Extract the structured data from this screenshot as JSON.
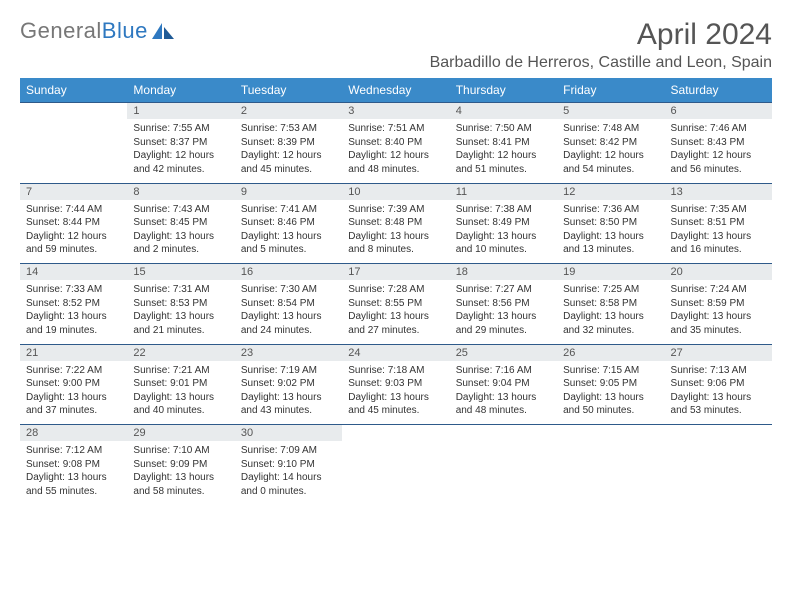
{
  "logo": {
    "part1": "General",
    "part2": "Blue"
  },
  "title": "April 2024",
  "location": "Barbadillo de Herreros, Castille and Leon, Spain",
  "colors": {
    "header_bg": "#3a8ac9",
    "daynum_bg": "#e8ebed",
    "border": "#2e5a8a",
    "logo_gray": "#777",
    "logo_blue": "#2e78c0"
  },
  "weekdays": [
    "Sunday",
    "Monday",
    "Tuesday",
    "Wednesday",
    "Thursday",
    "Friday",
    "Saturday"
  ],
  "weeks": [
    {
      "nums": [
        "",
        "1",
        "2",
        "3",
        "4",
        "5",
        "6"
      ],
      "cells": [
        null,
        {
          "sr": "Sunrise: 7:55 AM",
          "ss": "Sunset: 8:37 PM",
          "d1": "Daylight: 12 hours",
          "d2": "and 42 minutes."
        },
        {
          "sr": "Sunrise: 7:53 AM",
          "ss": "Sunset: 8:39 PM",
          "d1": "Daylight: 12 hours",
          "d2": "and 45 minutes."
        },
        {
          "sr": "Sunrise: 7:51 AM",
          "ss": "Sunset: 8:40 PM",
          "d1": "Daylight: 12 hours",
          "d2": "and 48 minutes."
        },
        {
          "sr": "Sunrise: 7:50 AM",
          "ss": "Sunset: 8:41 PM",
          "d1": "Daylight: 12 hours",
          "d2": "and 51 minutes."
        },
        {
          "sr": "Sunrise: 7:48 AM",
          "ss": "Sunset: 8:42 PM",
          "d1": "Daylight: 12 hours",
          "d2": "and 54 minutes."
        },
        {
          "sr": "Sunrise: 7:46 AM",
          "ss": "Sunset: 8:43 PM",
          "d1": "Daylight: 12 hours",
          "d2": "and 56 minutes."
        }
      ]
    },
    {
      "nums": [
        "7",
        "8",
        "9",
        "10",
        "11",
        "12",
        "13"
      ],
      "cells": [
        {
          "sr": "Sunrise: 7:44 AM",
          "ss": "Sunset: 8:44 PM",
          "d1": "Daylight: 12 hours",
          "d2": "and 59 minutes."
        },
        {
          "sr": "Sunrise: 7:43 AM",
          "ss": "Sunset: 8:45 PM",
          "d1": "Daylight: 13 hours",
          "d2": "and 2 minutes."
        },
        {
          "sr": "Sunrise: 7:41 AM",
          "ss": "Sunset: 8:46 PM",
          "d1": "Daylight: 13 hours",
          "d2": "and 5 minutes."
        },
        {
          "sr": "Sunrise: 7:39 AM",
          "ss": "Sunset: 8:48 PM",
          "d1": "Daylight: 13 hours",
          "d2": "and 8 minutes."
        },
        {
          "sr": "Sunrise: 7:38 AM",
          "ss": "Sunset: 8:49 PM",
          "d1": "Daylight: 13 hours",
          "d2": "and 10 minutes."
        },
        {
          "sr": "Sunrise: 7:36 AM",
          "ss": "Sunset: 8:50 PM",
          "d1": "Daylight: 13 hours",
          "d2": "and 13 minutes."
        },
        {
          "sr": "Sunrise: 7:35 AM",
          "ss": "Sunset: 8:51 PM",
          "d1": "Daylight: 13 hours",
          "d2": "and 16 minutes."
        }
      ]
    },
    {
      "nums": [
        "14",
        "15",
        "16",
        "17",
        "18",
        "19",
        "20"
      ],
      "cells": [
        {
          "sr": "Sunrise: 7:33 AM",
          "ss": "Sunset: 8:52 PM",
          "d1": "Daylight: 13 hours",
          "d2": "and 19 minutes."
        },
        {
          "sr": "Sunrise: 7:31 AM",
          "ss": "Sunset: 8:53 PM",
          "d1": "Daylight: 13 hours",
          "d2": "and 21 minutes."
        },
        {
          "sr": "Sunrise: 7:30 AM",
          "ss": "Sunset: 8:54 PM",
          "d1": "Daylight: 13 hours",
          "d2": "and 24 minutes."
        },
        {
          "sr": "Sunrise: 7:28 AM",
          "ss": "Sunset: 8:55 PM",
          "d1": "Daylight: 13 hours",
          "d2": "and 27 minutes."
        },
        {
          "sr": "Sunrise: 7:27 AM",
          "ss": "Sunset: 8:56 PM",
          "d1": "Daylight: 13 hours",
          "d2": "and 29 minutes."
        },
        {
          "sr": "Sunrise: 7:25 AM",
          "ss": "Sunset: 8:58 PM",
          "d1": "Daylight: 13 hours",
          "d2": "and 32 minutes."
        },
        {
          "sr": "Sunrise: 7:24 AM",
          "ss": "Sunset: 8:59 PM",
          "d1": "Daylight: 13 hours",
          "d2": "and 35 minutes."
        }
      ]
    },
    {
      "nums": [
        "21",
        "22",
        "23",
        "24",
        "25",
        "26",
        "27"
      ],
      "cells": [
        {
          "sr": "Sunrise: 7:22 AM",
          "ss": "Sunset: 9:00 PM",
          "d1": "Daylight: 13 hours",
          "d2": "and 37 minutes."
        },
        {
          "sr": "Sunrise: 7:21 AM",
          "ss": "Sunset: 9:01 PM",
          "d1": "Daylight: 13 hours",
          "d2": "and 40 minutes."
        },
        {
          "sr": "Sunrise: 7:19 AM",
          "ss": "Sunset: 9:02 PM",
          "d1": "Daylight: 13 hours",
          "d2": "and 43 minutes."
        },
        {
          "sr": "Sunrise: 7:18 AM",
          "ss": "Sunset: 9:03 PM",
          "d1": "Daylight: 13 hours",
          "d2": "and 45 minutes."
        },
        {
          "sr": "Sunrise: 7:16 AM",
          "ss": "Sunset: 9:04 PM",
          "d1": "Daylight: 13 hours",
          "d2": "and 48 minutes."
        },
        {
          "sr": "Sunrise: 7:15 AM",
          "ss": "Sunset: 9:05 PM",
          "d1": "Daylight: 13 hours",
          "d2": "and 50 minutes."
        },
        {
          "sr": "Sunrise: 7:13 AM",
          "ss": "Sunset: 9:06 PM",
          "d1": "Daylight: 13 hours",
          "d2": "and 53 minutes."
        }
      ]
    },
    {
      "nums": [
        "28",
        "29",
        "30",
        "",
        "",
        "",
        ""
      ],
      "cells": [
        {
          "sr": "Sunrise: 7:12 AM",
          "ss": "Sunset: 9:08 PM",
          "d1": "Daylight: 13 hours",
          "d2": "and 55 minutes."
        },
        {
          "sr": "Sunrise: 7:10 AM",
          "ss": "Sunset: 9:09 PM",
          "d1": "Daylight: 13 hours",
          "d2": "and 58 minutes."
        },
        {
          "sr": "Sunrise: 7:09 AM",
          "ss": "Sunset: 9:10 PM",
          "d1": "Daylight: 14 hours",
          "d2": "and 0 minutes."
        },
        null,
        null,
        null,
        null
      ]
    }
  ]
}
